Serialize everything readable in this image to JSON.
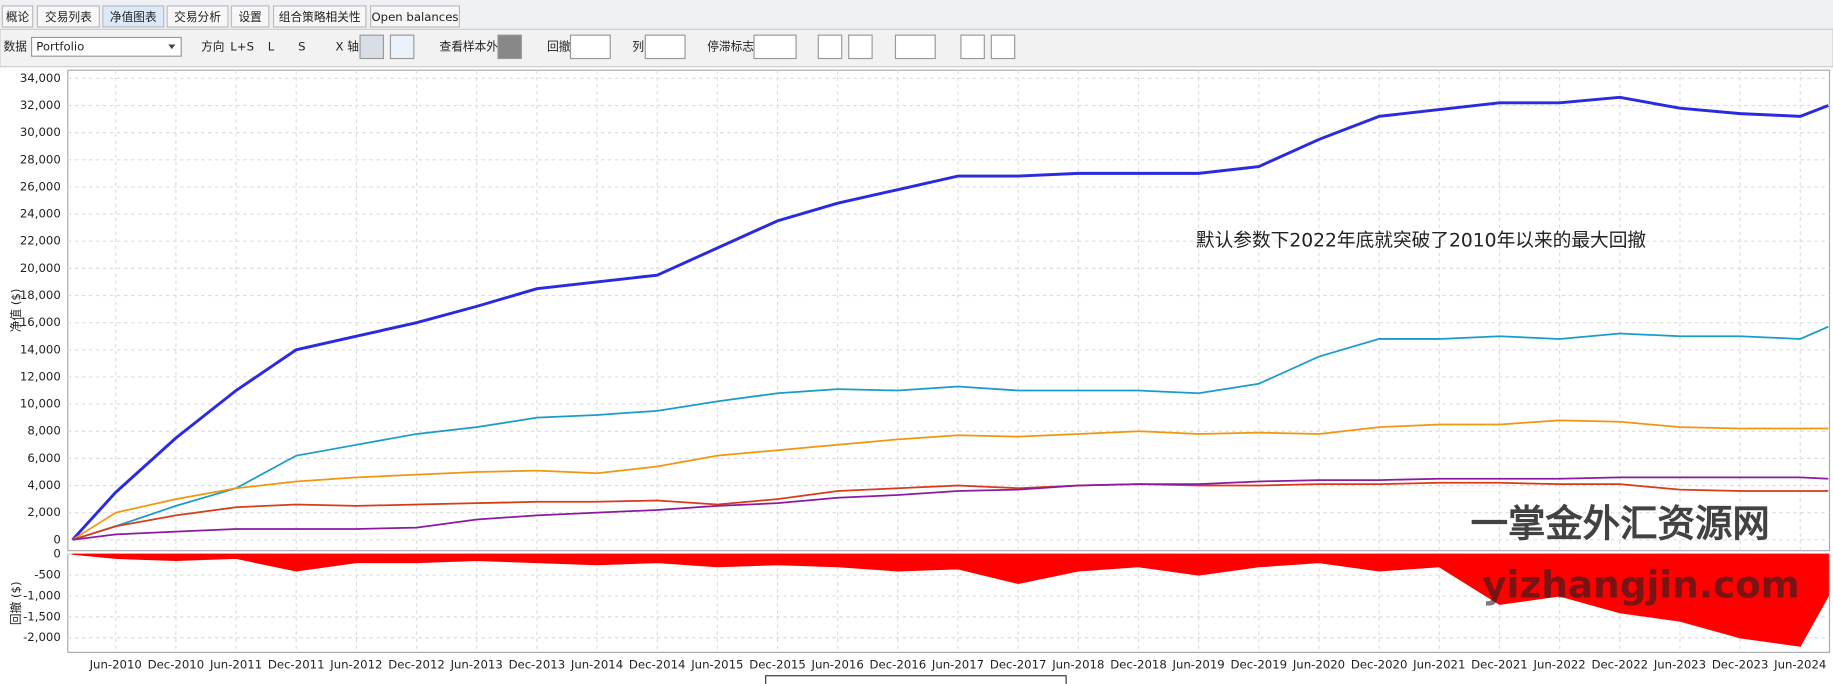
{
  "tabs": [
    "概论",
    "交易列表",
    "净值图表",
    "交易分析",
    "设置",
    "组合策略相关性",
    "Open balances"
  ],
  "toolbar": {
    "data_label": "数据",
    "data_value": "Portfolio",
    "direction": "方向",
    "ls": "L+S",
    "l": "L",
    "s": "S",
    "x_axis": "X 轴",
    "out_of_sample": "查看样本外",
    "drawdown": "回撤",
    "column": "列",
    "stagnation": "停滞标志"
  },
  "chart_data": [
    {
      "type": "line",
      "ylabel": "净值 ($)",
      "annotation": "默认参数下2022年底就突破了2010年以来的最大回撤",
      "watermark": "一掌金外汇资源网",
      "categories": [
        null,
        "Jun-2010",
        "Dec-2010",
        "Jun-2011",
        "Dec-2011",
        "Jun-2012",
        "Dec-2012",
        "Jun-2013",
        "Dec-2013",
        "Jun-2014",
        "Dec-2014",
        "Jun-2015",
        "Dec-2015",
        "Jun-2016",
        "Dec-2016",
        "Jun-2017",
        "Dec-2017",
        "Jun-2018",
        "Dec-2018",
        "Jun-2019",
        "Dec-2019",
        "Jun-2020",
        "Dec-2020",
        "Jun-2021",
        "Dec-2021",
        "Jun-2022",
        "Dec-2022",
        "Jun-2023",
        "Dec-2023",
        "Jun-2024",
        null
      ],
      "series": [
        {
          "color": "#2a2ae0",
          "values": [
            0,
            3500,
            7500,
            11000,
            14000,
            15000,
            16000,
            17200,
            18500,
            19000,
            19500,
            21500,
            23500,
            24800,
            25800,
            26800,
            26800,
            27000,
            27000,
            27000,
            27500,
            29500,
            31200,
            31700,
            32200,
            32200,
            32600,
            31800,
            31400,
            31200,
            32000
          ]
        },
        {
          "color": "#1a9cc8",
          "values": [
            0,
            1000,
            2500,
            3800,
            6200,
            7000,
            7800,
            8300,
            9000,
            9200,
            9500,
            10200,
            10800,
            11100,
            11000,
            11300,
            11000,
            11000,
            11000,
            10800,
            11500,
            13500,
            14800,
            14800,
            15000,
            14800,
            15200,
            15000,
            15000,
            14800,
            15700
          ]
        },
        {
          "color": "#f0960f",
          "values": [
            0,
            2000,
            3000,
            3800,
            4300,
            4600,
            4800,
            5000,
            5100,
            4900,
            5400,
            6200,
            6600,
            7000,
            7400,
            7700,
            7600,
            7800,
            8000,
            7800,
            7900,
            7800,
            8300,
            8500,
            8500,
            8800,
            8700,
            8300,
            8200,
            8200,
            8200
          ]
        },
        {
          "color": "#d83a1a",
          "values": [
            0,
            1000,
            1800,
            2400,
            2600,
            2500,
            2600,
            2700,
            2800,
            2800,
            2900,
            2600,
            3000,
            3600,
            3800,
            4000,
            3800,
            4000,
            4100,
            4000,
            4000,
            4100,
            4100,
            4200,
            4200,
            4100,
            4100,
            3700,
            3600,
            3600,
            3600
          ]
        },
        {
          "color": "#8a1aa0",
          "values": [
            0,
            400,
            600,
            800,
            800,
            800,
            900,
            1500,
            1800,
            2000,
            2200,
            2500,
            2700,
            3100,
            3300,
            3600,
            3700,
            4000,
            4100,
            4100,
            4300,
            4400,
            4400,
            4500,
            4500,
            4500,
            4600,
            4600,
            4600,
            4600,
            4500
          ]
        }
      ],
      "ylim": [
        -800,
        34600
      ],
      "yticks": [
        0,
        {
          "value": 2000,
          "label": "2,000"
        },
        {
          "value": 4000,
          "label": "4,000"
        },
        {
          "value": 6000,
          "label": "6,000"
        },
        {
          "value": 8000,
          "label": "8,000"
        },
        {
          "value": 10000,
          "label": "10,000"
        },
        {
          "value": 12000,
          "label": "12,000"
        },
        {
          "value": 14000,
          "label": "14,000"
        },
        {
          "value": 16000,
          "label": "16,000"
        },
        {
          "value": 18000,
          "label": "18,000"
        },
        {
          "value": 20000,
          "label": "20,000"
        },
        {
          "value": 22000,
          "label": "22,000"
        },
        {
          "value": 24000,
          "label": "24,000"
        },
        {
          "value": 26000,
          "label": "26,000"
        },
        {
          "value": 28000,
          "label": "28,000"
        },
        {
          "value": 30000,
          "label": "30,000"
        },
        {
          "value": 32000,
          "label": "32,000"
        },
        {
          "value": 34000,
          "label": "34,000"
        }
      ],
      "grid": true
    },
    {
      "type": "area",
      "ylabel": "回撤 ($)",
      "color": "#ff0000",
      "watermark": "yizhangjin.com",
      "values": [
        0,
        -100,
        -150,
        -100,
        -400,
        -200,
        -200,
        -150,
        -200,
        -250,
        -200,
        -300,
        -250,
        -300,
        -400,
        -350,
        -700,
        -400,
        -300,
        -500,
        -300,
        -200,
        -400,
        -300,
        -1200,
        -1000,
        -1400,
        -1600,
        -2000,
        -2200,
        -1000
      ],
      "ylim": [
        -2350,
        0
      ],
      "yticks": [
        0,
        -500,
        {
          "value": -1000,
          "label": "-1,000"
        },
        {
          "value": -1500,
          "label": "-1,500"
        },
        {
          "value": -2000,
          "label": "-2,000"
        }
      ],
      "grid": true
    }
  ]
}
